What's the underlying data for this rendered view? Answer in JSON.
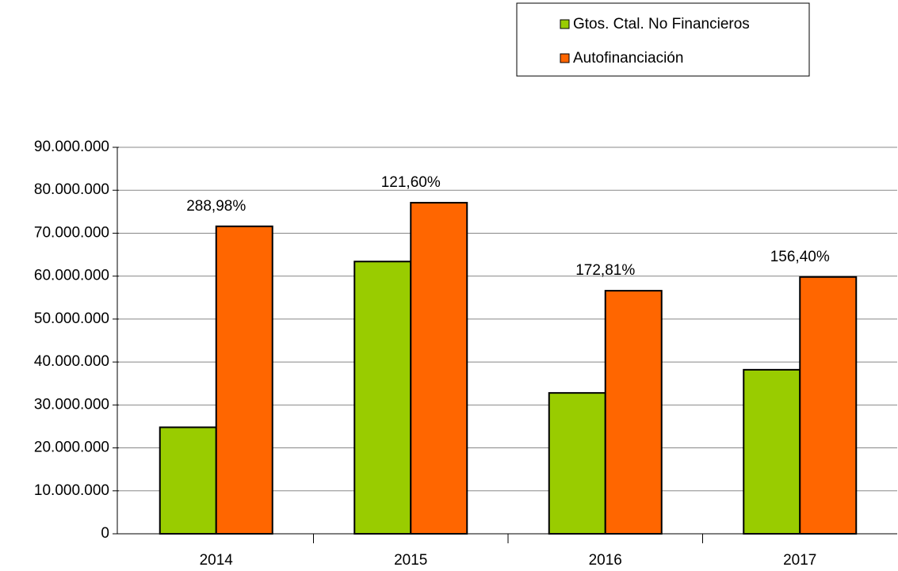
{
  "chart_data": {
    "type": "bar",
    "categories": [
      "2014",
      "2015",
      "2016",
      "2017"
    ],
    "series": [
      {
        "name": "Gtos. Ctal. No Financieros",
        "color": "#99cc00",
        "values": [
          24800000,
          63400000,
          32800000,
          38200000
        ]
      },
      {
        "name": "Autofinanciación",
        "color": "#ff6600",
        "values": [
          71600000,
          77100000,
          56600000,
          59800000
        ]
      }
    ],
    "annotations": [
      "288,98%",
      "121,60%",
      "172,81%",
      "156,40%"
    ],
    "ylim": [
      0,
      90000000
    ],
    "yticks": [
      0,
      {
        "value": 10000000,
        "label": "10.000.000"
      },
      {
        "value": 20000000,
        "label": "20.000.000"
      },
      {
        "value": 30000000,
        "label": "30.000.000"
      },
      {
        "value": 40000000,
        "label": "40.000.000"
      },
      {
        "value": 50000000,
        "label": "50.000.000"
      },
      {
        "value": 60000000,
        "label": "60.000.000"
      },
      {
        "value": 70000000,
        "label": "70.000.000"
      },
      {
        "value": 80000000,
        "label": "80.000.000"
      },
      {
        "value": 90000000,
        "label": "90.000.000"
      }
    ],
    "grid": true,
    "legend": "top-right"
  }
}
